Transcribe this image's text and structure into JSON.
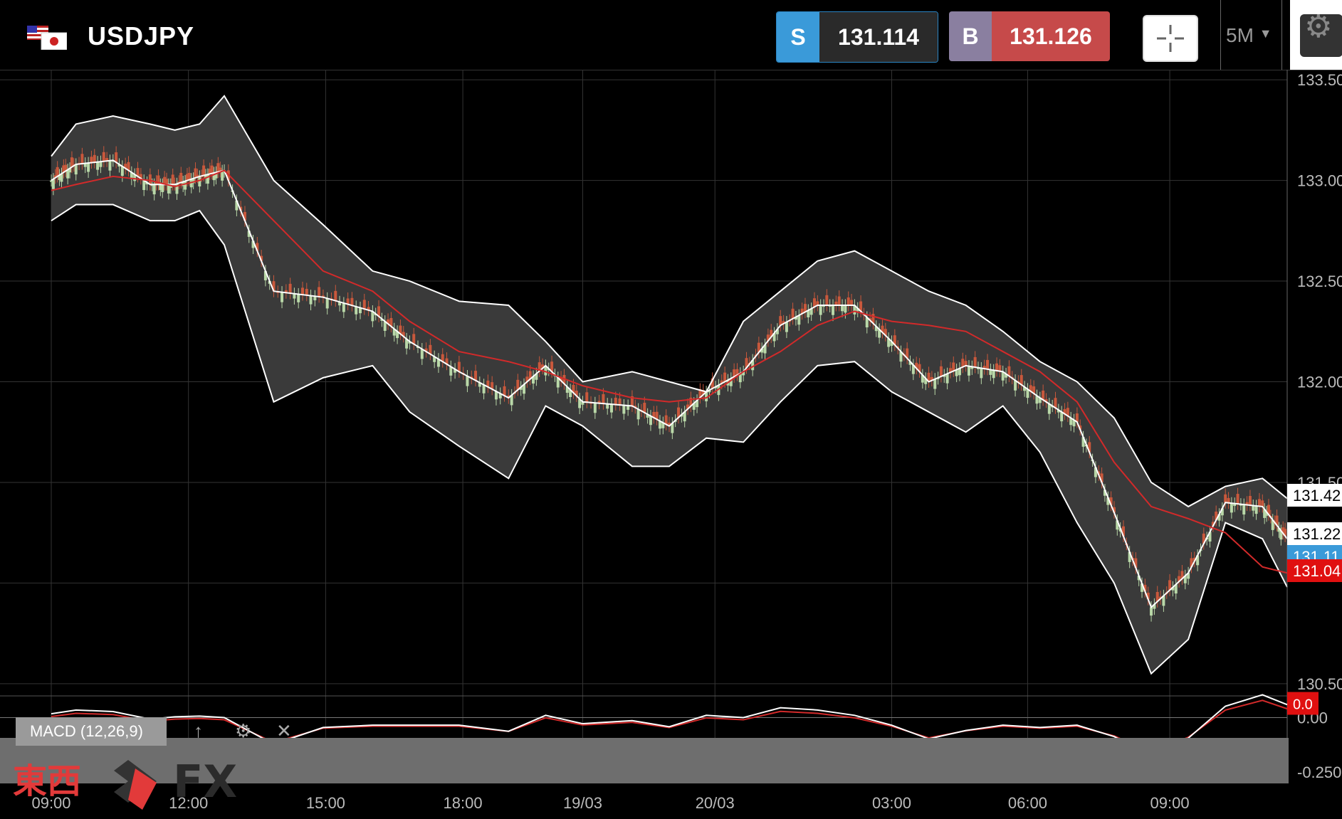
{
  "header": {
    "symbol": "USDJPY",
    "sell_tag": "S",
    "sell_price": "131.114",
    "buy_tag": "B",
    "buy_price": "131.126",
    "timeframe": "5M"
  },
  "indicator": {
    "label": "MACD (12,26,9)"
  },
  "logo": {
    "kanji": "東西",
    "fx": "FX"
  },
  "colors": {
    "background": "#000000",
    "band_fill": "#3a3a3a",
    "band_line": "#ffffff",
    "ma_line": "#d22a2a",
    "candle_up": "#b9d8a8",
    "candle_down": "#c9583c",
    "sell": "#3a9ad9",
    "buy": "#c64a4a"
  },
  "chart_data": {
    "type": "line",
    "price_axis": {
      "ylim": [
        130.45,
        133.55
      ],
      "ticks": [
        "133.50",
        "133.00",
        "132.50",
        "132.00",
        "131.50",
        "130.50"
      ],
      "markers": [
        {
          "label": "131.42",
          "style": "white"
        },
        {
          "label": "131.22",
          "style": "white"
        },
        {
          "label": "131.11",
          "style": "blue"
        },
        {
          "label": "131.04",
          "style": "red"
        }
      ]
    },
    "macd_axis": {
      "ylim": [
        -0.3,
        0.1
      ],
      "ticks": [
        "0.00",
        "-0.250"
      ],
      "marker": "0.0"
    },
    "x_ticks": [
      "09:00",
      "12:00",
      "15:00",
      "18:00",
      "19/03",
      "20/03",
      "03:00",
      "06:00",
      "09:00"
    ],
    "x_tick_positions": [
      0,
      0.111,
      0.222,
      0.333,
      0.43,
      0.537,
      0.68,
      0.79,
      0.905
    ],
    "series": [
      {
        "values_x": [
          0,
          0.02,
          0.05,
          0.08,
          0.1,
          0.12,
          0.14,
          0.18,
          0.22,
          0.26,
          0.29,
          0.33,
          0.37,
          0.4,
          0.43,
          0.47,
          0.5,
          0.53,
          0.56,
          0.59,
          0.62,
          0.65,
          0.68,
          0.71,
          0.74,
          0.77,
          0.8,
          0.83,
          0.86,
          0.89,
          0.92,
          0.95,
          0.98,
          1.0
        ]
      },
      {
        "name": "",
        "values": [
          132.95,
          132.98,
          133.02,
          133.0,
          132.97,
          133.0,
          133.05,
          132.8,
          132.55,
          132.45,
          132.3,
          132.15,
          132.1,
          132.05,
          131.98,
          131.92,
          131.9,
          131.92,
          132.05,
          132.15,
          132.28,
          132.35,
          132.3,
          132.28,
          132.25,
          132.15,
          132.05,
          131.9,
          131.6,
          131.38,
          131.32,
          131.25,
          131.08,
          131.05
        ]
      },
      {
        "name": "",
        "values": [
          133.0,
          133.08,
          133.1,
          132.98,
          132.98,
          133.02,
          133.05,
          132.45,
          132.42,
          132.35,
          132.2,
          132.05,
          131.92,
          132.08,
          131.9,
          131.88,
          131.78,
          131.95,
          132.05,
          132.28,
          132.38,
          132.38,
          132.2,
          132.0,
          132.08,
          132.05,
          131.92,
          131.8,
          131.35,
          130.88,
          131.05,
          131.4,
          131.38,
          131.22
        ]
      },
      {
        "name": "",
        "values": [
          133.12,
          133.28,
          133.32,
          133.28,
          133.25,
          133.28,
          133.42,
          133.0,
          132.78,
          132.55,
          132.5,
          132.4,
          132.38,
          132.2,
          132.0,
          132.05,
          132.0,
          131.95,
          132.3,
          132.45,
          132.6,
          132.65,
          132.55,
          132.45,
          132.38,
          132.25,
          132.1,
          132.0,
          131.82,
          131.5,
          131.38,
          131.48,
          131.52,
          131.42
        ]
      },
      {
        "name": "",
        "values": [
          132.8,
          132.88,
          132.88,
          132.8,
          132.8,
          132.85,
          132.68,
          131.9,
          132.02,
          132.08,
          131.85,
          131.68,
          131.52,
          131.88,
          131.78,
          131.58,
          131.58,
          131.72,
          131.7,
          131.9,
          132.08,
          132.1,
          131.95,
          131.85,
          131.75,
          131.88,
          131.65,
          131.3,
          131.0,
          130.55,
          130.72,
          131.3,
          131.22,
          130.98
        ]
      }
    ]
  }
}
